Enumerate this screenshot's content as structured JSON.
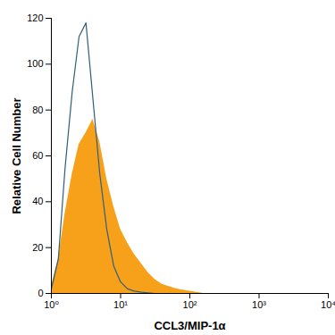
{
  "chart_data": {
    "type": "histogram",
    "x_label": "CCL3/MIP-1α",
    "y_label": "Relative Cell Number",
    "log": "x",
    "grid": false,
    "xlim": [
      1,
      10000
    ],
    "ylim": [
      0,
      120
    ],
    "xticks": [
      {
        "value": 1,
        "label": "10⁰"
      },
      {
        "value": 10,
        "label": "10¹"
      },
      {
        "value": 100,
        "label": "10²"
      },
      {
        "value": 1000,
        "label": "10³"
      },
      {
        "value": 10000,
        "label": "10⁴"
      }
    ],
    "yticks": [
      0,
      20,
      40,
      60,
      80,
      100,
      120
    ],
    "x": [
      1,
      1.26,
      1.58,
      2.0,
      2.51,
      3.16,
      3.98,
      5.01,
      6.31,
      7.94,
      10,
      12.6,
      15.8,
      20,
      25.1,
      31.6,
      39.8,
      50.1,
      63.1,
      79.4,
      100,
      126,
      158,
      1000,
      10000
    ],
    "series": [
      {
        "type": "area",
        "color": "#f7a11a",
        "values": [
          3,
          15,
          35,
          52,
          65,
          70,
          76,
          66,
          50,
          38,
          28,
          22,
          17,
          13,
          9,
          6,
          4,
          3,
          2,
          1.5,
          1,
          0.5,
          0,
          0,
          0
        ]
      },
      {
        "type": "line",
        "color": "#2f5f7f",
        "values": [
          2,
          15,
          55,
          88,
          112,
          118,
          85,
          52,
          28,
          12,
          5,
          2,
          1,
          0.5,
          0.3,
          0,
          0,
          0,
          0,
          0,
          0,
          0,
          0,
          0,
          0
        ]
      }
    ]
  }
}
